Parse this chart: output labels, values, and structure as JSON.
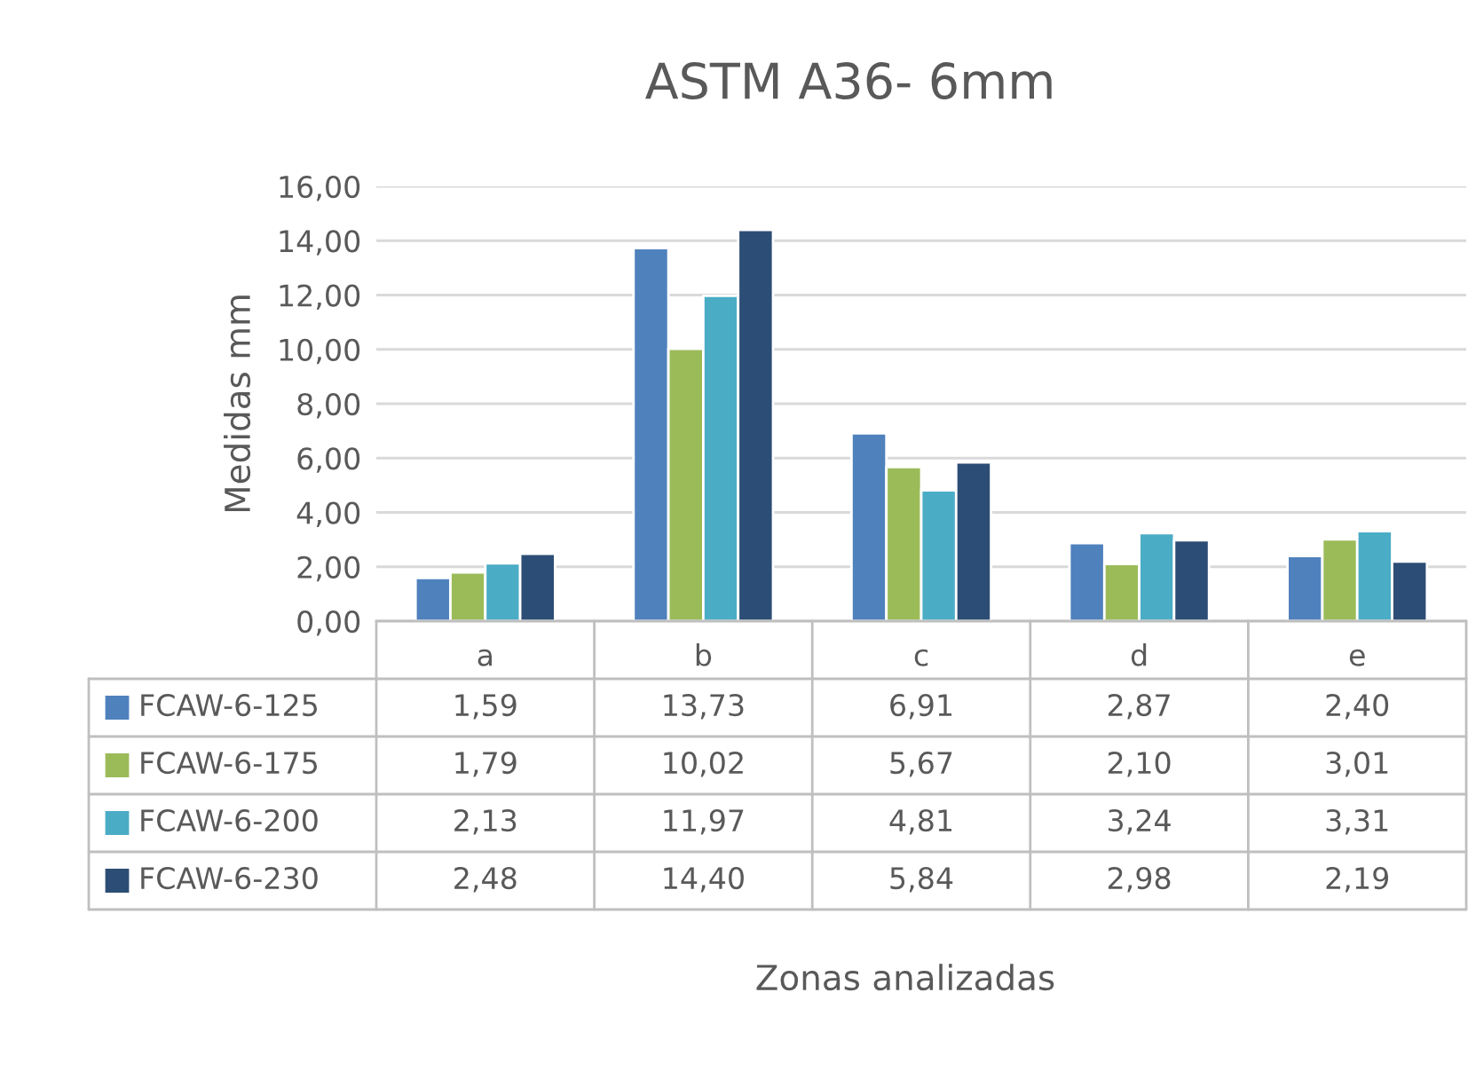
{
  "chart_data": {
    "type": "bar",
    "title": "ASTM A36- 6mm",
    "ylabel": "Medidas mm",
    "annotations": [
      "Zonas analizadas"
    ],
    "categories": [
      "a",
      "b",
      "c",
      "d",
      "e"
    ],
    "series": [
      {
        "name": "FCAW-6-125",
        "color": "#4f81bd",
        "values": [
          1.59,
          13.73,
          6.91,
          2.87,
          2.4
        ],
        "value_labels": [
          "1,59",
          "13,73",
          "6,91",
          "2,87",
          "2,40"
        ]
      },
      {
        "name": "FCAW-6-175",
        "color": "#9bbb59",
        "values": [
          1.79,
          10.02,
          5.67,
          2.1,
          3.01
        ],
        "value_labels": [
          "1,79",
          "10,02",
          "5,67",
          "2,10",
          "3,01"
        ]
      },
      {
        "name": "FCAW-6-200",
        "color": "#4bacc6",
        "values": [
          2.13,
          11.97,
          4.81,
          3.24,
          3.31
        ],
        "value_labels": [
          "2,13",
          "11,97",
          "4,81",
          "3,24",
          "3,31"
        ]
      },
      {
        "name": "FCAW-6-230",
        "color": "#2c4d75",
        "values": [
          2.48,
          14.4,
          5.84,
          2.98,
          2.19
        ],
        "value_labels": [
          "2,48",
          "14,40",
          "5,84",
          "2,98",
          "2,19"
        ]
      }
    ],
    "ylim": [
      0,
      16
    ],
    "yticks": [
      {
        "value": 0,
        "label": "0,00"
      },
      {
        "value": 2,
        "label": "2,00"
      },
      {
        "value": 4,
        "label": "4,00"
      },
      {
        "value": 6,
        "label": "6,00"
      },
      {
        "value": 8,
        "label": "8,00"
      },
      {
        "value": 10,
        "label": "10,00"
      },
      {
        "value": 12,
        "label": "12,00"
      },
      {
        "value": 14,
        "label": "14,00"
      },
      {
        "value": 16,
        "label": "16,00"
      }
    ],
    "grid": "y",
    "legend": "bottom"
  }
}
